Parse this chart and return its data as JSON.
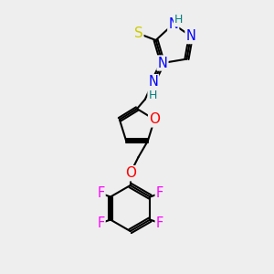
{
  "background_color": "#eeeeee",
  "atom_colors": {
    "S": "#cccc00",
    "N": "#0000ff",
    "O": "#ff0000",
    "F": "#ff00ff",
    "H": "#008080",
    "C": "#000000"
  },
  "bond_color": "#000000",
  "bond_width": 1.5
}
